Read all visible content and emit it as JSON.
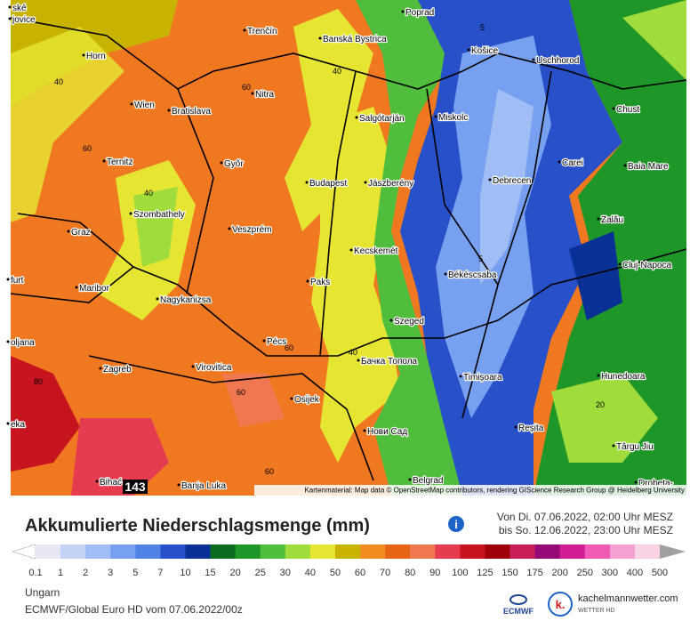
{
  "map": {
    "places": [
      "ské",
      "jovice",
      "Poprad",
      "Trenčín",
      "Banská Bystrica",
      "Košice",
      "Horn",
      "Uschhorod",
      "Nitra",
      "Wien",
      "Bratislava",
      "Salgótarján",
      "Miskolc",
      "Chust",
      "Ternitz",
      "Győr",
      "Carei",
      "Baia Mare",
      "Budapest",
      "Jászberény",
      "Debrecen",
      "Szombathely",
      "Zalău",
      "Veszprém",
      "Graz",
      "Kecskemét",
      "Cluj-Napoca",
      "furt",
      "Békéscsaba",
      "Paks",
      "Maribor",
      "Nagykanizsa",
      "Szeged",
      "oljana",
      "Pécs",
      "Бачка Топола",
      "Zagreb",
      "Virovitica",
      "Timișoara",
      "Hunedoara",
      "Osijek",
      "eka",
      "Нови Сад",
      "Reșita",
      "Târgu Jiu",
      "Belgrad",
      "Bihać",
      "Banja Luka",
      "Drobeta-"
    ],
    "contour_labels": [
      "40",
      "60",
      "40",
      "5",
      "60",
      "40",
      "5",
      "60",
      "40",
      "60",
      "80",
      "60",
      "20"
    ],
    "max_label": "143",
    "attribution": "Kartenmaterial: Map data © OpenStreetMap contributors, rendering GIScience Research Group @ Heidelberg University"
  },
  "header": {
    "title": "Akkumulierte Niederschlagsmenge (mm)",
    "period_from": "Von Di. 07.06.2022, 02:00 Uhr MESZ",
    "period_to": "bis So. 12.06.2022, 23:00 Uhr MESZ"
  },
  "legend": {
    "labels": [
      "0.1",
      "1",
      "2",
      "3",
      "5",
      "7",
      "10",
      "15",
      "20",
      "25",
      "30",
      "40",
      "50",
      "60",
      "70",
      "80",
      "90",
      "100",
      "125",
      "150",
      "175",
      "200",
      "250",
      "300",
      "400",
      "500"
    ],
    "colors": [
      "#ffffff",
      "#e6e6f5",
      "#c3d2f5",
      "#a0bef5",
      "#78a0f0",
      "#5082e6",
      "#2850c8",
      "#0a3296",
      "#0a6e1e",
      "#1e9628",
      "#50be3c",
      "#a0dc3c",
      "#e6e632",
      "#c8b400",
      "#f08c1e",
      "#e66414",
      "#f07850",
      "#e63c50",
      "#c8141e",
      "#a0000a",
      "#c81e5a",
      "#960a78",
      "#d21e96",
      "#f05ab4",
      "#f5a0d2",
      "#fad2e6",
      "#a0a0a0"
    ]
  },
  "footer": {
    "region": "Ungarn",
    "model": "ECMWF/Global Euro HD vom 07.06.2022/00z",
    "ecmwf": "ECMWF",
    "brand": "kachelmannwetter.com",
    "brand_sub": "WETTER HD",
    "logo_letter": "k."
  }
}
